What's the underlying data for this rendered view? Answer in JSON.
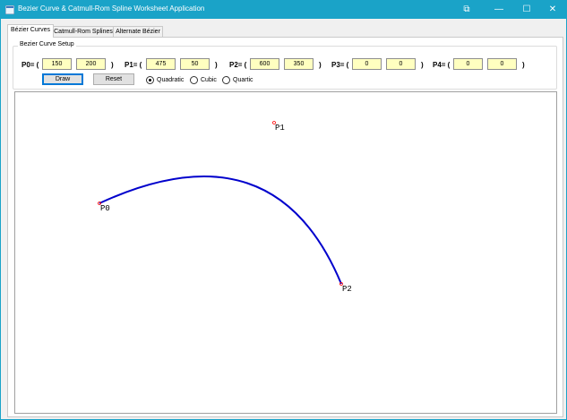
{
  "window": {
    "title": "Bezier Curve & Catmull-Rom Spline Worksheet Application",
    "controls": {
      "restore_down": "⧉",
      "minimize": "—",
      "maximize": "☐",
      "close": "✕"
    },
    "accent_color": "#1aa3c8"
  },
  "tabs": [
    {
      "label": "Bézier Curves",
      "active": true
    },
    {
      "label": "Catmull-Rom Splines",
      "active": false
    },
    {
      "label": "Alternate Bézier",
      "active": false
    }
  ],
  "setup": {
    "group_title": "Bezier Curve Setup",
    "points": [
      {
        "label": "P0= (",
        "x": "150",
        "y": "200",
        "close": ")"
      },
      {
        "label": "P1= (",
        "x": "475",
        "y": "50",
        "close": ")"
      },
      {
        "label": "P2= (",
        "x": "600",
        "y": "350",
        "close": ")"
      },
      {
        "label": "P3= (",
        "x": "0",
        "y": "0",
        "close": ")"
      },
      {
        "label": "P4= (",
        "x": "0",
        "y": "0",
        "close": ")"
      }
    ],
    "draw_label": "Draw",
    "reset_label": "Reset",
    "degree_options": [
      {
        "label": "Quadratic",
        "selected": true
      },
      {
        "label": "Cubic",
        "selected": false
      },
      {
        "label": "Quartic",
        "selected": false
      }
    ],
    "textbox_color": "#ffffc0"
  },
  "canvas": {
    "curve_color": "#0000cc",
    "control_point_color": "#ff0000",
    "point_labels": [
      "P0",
      "P1",
      "P2"
    ]
  }
}
